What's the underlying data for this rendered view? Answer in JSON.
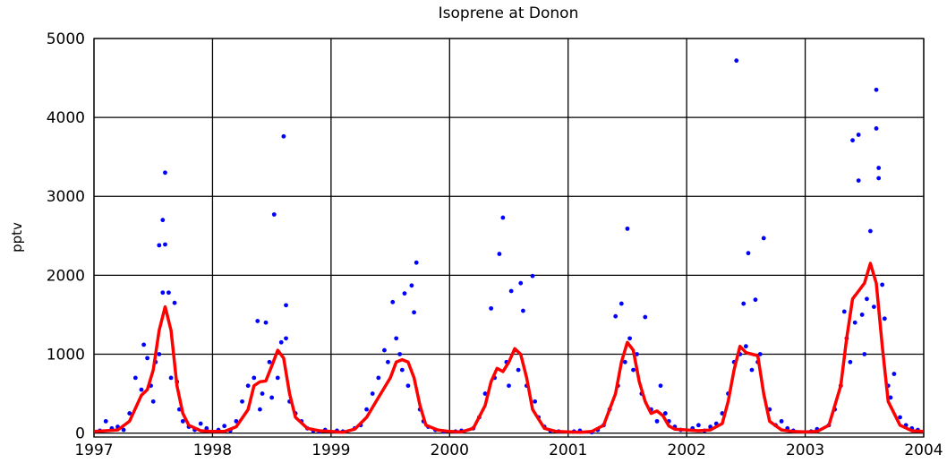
{
  "chart_data": {
    "type": "line",
    "title": "Isoprene at Donon",
    "y_label": "pptv",
    "xlim": [
      1997,
      2004
    ],
    "xticks": [
      1997,
      1998,
      1999,
      2000,
      2001,
      2002,
      2003,
      2004
    ],
    "ylim": [
      -50,
      5000
    ],
    "yticks": [
      0,
      1000,
      2000,
      3000,
      4000,
      5000
    ],
    "grid": true,
    "series": [
      {
        "color": "#0000ff",
        "marker": "dot",
        "x": [
          1997.05,
          1997.1,
          1997.15,
          1997.2,
          1997.25,
          1997.3,
          1997.35,
          1997.4,
          1997.42,
          1997.45,
          1997.48,
          1997.5,
          1997.52,
          1997.55,
          1997.55,
          1997.58,
          1997.58,
          1997.6,
          1997.6,
          1997.63,
          1997.65,
          1997.68,
          1997.7,
          1997.72,
          1997.75,
          1997.8,
          1997.85,
          1997.9,
          1997.95,
          1998.05,
          1998.1,
          1998.15,
          1998.2,
          1998.25,
          1998.3,
          1998.35,
          1998.38,
          1998.4,
          1998.42,
          1998.45,
          1998.48,
          1998.5,
          1998.52,
          1998.55,
          1998.58,
          1998.6,
          1998.62,
          1998.62,
          1998.65,
          1998.7,
          1998.75,
          1998.8,
          1998.85,
          1998.9,
          1998.95,
          1999.05,
          1999.1,
          1999.2,
          1999.25,
          1999.3,
          1999.35,
          1999.4,
          1999.45,
          1999.48,
          1999.52,
          1999.55,
          1999.58,
          1999.6,
          1999.62,
          1999.65,
          1999.68,
          1999.7,
          1999.72,
          1999.75,
          1999.78,
          1999.82,
          1999.88,
          1999.95,
          2000.05,
          2000.1,
          2000.2,
          2000.25,
          2000.3,
          2000.35,
          2000.38,
          2000.42,
          2000.45,
          2000.48,
          2000.5,
          2000.52,
          2000.55,
          2000.58,
          2000.6,
          2000.62,
          2000.65,
          2000.7,
          2000.72,
          2000.75,
          2000.8,
          2000.85,
          2000.92,
          2001.05,
          2001.1,
          2001.2,
          2001.25,
          2001.3,
          2001.35,
          2001.4,
          2001.42,
          2001.45,
          2001.48,
          2001.5,
          2001.52,
          2001.55,
          2001.58,
          2001.62,
          2001.65,
          2001.7,
          2001.75,
          2001.78,
          2001.82,
          2001.85,
          2001.9,
          2001.95,
          2002.05,
          2002.1,
          2002.15,
          2002.2,
          2002.25,
          2002.3,
          2002.35,
          2002.4,
          2002.42,
          2002.45,
          2002.48,
          2002.5,
          2002.52,
          2002.55,
          2002.58,
          2002.6,
          2002.62,
          2002.65,
          2002.7,
          2002.75,
          2002.8,
          2002.85,
          2002.9,
          2003.05,
          2003.1,
          2003.2,
          2003.25,
          2003.3,
          2003.33,
          2003.35,
          2003.38,
          2003.4,
          2003.42,
          2003.45,
          2003.45,
          2003.48,
          2003.5,
          2003.52,
          2003.55,
          2003.58,
          2003.6,
          2003.6,
          2003.62,
          2003.62,
          2003.65,
          2003.67,
          2003.7,
          2003.72,
          2003.75,
          2003.8,
          2003.85,
          2003.9,
          2003.95
        ],
        "values": [
          30,
          150,
          60,
          80,
          40,
          250,
          700,
          550,
          1120,
          950,
          600,
          400,
          900,
          2380,
          1000,
          2700,
          1780,
          3300,
          2390,
          1780,
          700,
          1650,
          650,
          300,
          150,
          80,
          40,
          120,
          60,
          40,
          90,
          30,
          150,
          400,
          600,
          700,
          1420,
          300,
          500,
          1400,
          900,
          450,
          2770,
          700,
          1150,
          3760,
          1620,
          1200,
          400,
          250,
          150,
          60,
          30,
          20,
          40,
          30,
          20,
          60,
          100,
          300,
          500,
          700,
          1050,
          900,
          1660,
          1200,
          1000,
          800,
          1770,
          600,
          1870,
          1530,
          2160,
          300,
          150,
          80,
          40,
          20,
          20,
          30,
          60,
          200,
          500,
          1580,
          700,
          2270,
          2730,
          900,
          600,
          1800,
          1050,
          800,
          1900,
          1550,
          600,
          1990,
          400,
          200,
          80,
          30,
          20,
          20,
          30,
          10,
          40,
          100,
          300,
          1480,
          600,
          1640,
          900,
          2590,
          1200,
          800,
          1000,
          500,
          1470,
          300,
          150,
          600,
          250,
          150,
          80,
          40,
          60,
          100,
          30,
          80,
          120,
          250,
          500,
          900,
          4720,
          1000,
          1640,
          1100,
          2280,
          800,
          1690,
          900,
          1000,
          2470,
          300,
          100,
          150,
          60,
          30,
          20,
          50,
          100,
          300,
          600,
          1540,
          1200,
          900,
          3710,
          1400,
          3780,
          3200,
          1500,
          1000,
          1700,
          2560,
          1600,
          4350,
          3860,
          3360,
          3230,
          1880,
          1450,
          600,
          450,
          750,
          200,
          100,
          60,
          40
        ]
      },
      {
        "color": "#ff0000",
        "x": [
          1997.0,
          1997.1,
          1997.2,
          1997.3,
          1997.4,
          1997.45,
          1997.5,
          1997.55,
          1997.6,
          1997.65,
          1997.7,
          1997.75,
          1997.8,
          1997.9,
          1998.0,
          1998.1,
          1998.2,
          1998.3,
          1998.35,
          1998.4,
          1998.45,
          1998.5,
          1998.55,
          1998.6,
          1998.65,
          1998.7,
          1998.8,
          1998.9,
          1999.0,
          1999.1,
          1999.2,
          1999.3,
          1999.4,
          1999.5,
          1999.55,
          1999.6,
          1999.65,
          1999.7,
          1999.75,
          1999.8,
          1999.9,
          2000.0,
          2000.1,
          2000.2,
          2000.3,
          2000.35,
          2000.4,
          2000.45,
          2000.5,
          2000.55,
          2000.6,
          2000.65,
          2000.7,
          2000.8,
          2000.9,
          2001.0,
          2001.1,
          2001.2,
          2001.3,
          2001.4,
          2001.45,
          2001.5,
          2001.55,
          2001.6,
          2001.65,
          2001.7,
          2001.75,
          2001.8,
          2001.85,
          2001.9,
          2002.0,
          2002.1,
          2002.2,
          2002.3,
          2002.35,
          2002.4,
          2002.45,
          2002.5,
          2002.55,
          2002.6,
          2002.65,
          2002.7,
          2002.8,
          2002.9,
          2003.0,
          2003.1,
          2003.2,
          2003.3,
          2003.35,
          2003.4,
          2003.45,
          2003.5,
          2003.55,
          2003.6,
          2003.65,
          2003.7,
          2003.8,
          2003.9,
          2004.0
        ],
        "values": [
          20,
          30,
          40,
          150,
          480,
          550,
          800,
          1300,
          1600,
          1300,
          600,
          250,
          100,
          30,
          20,
          20,
          80,
          300,
          600,
          650,
          660,
          850,
          1050,
          950,
          500,
          200,
          60,
          30,
          20,
          10,
          50,
          200,
          450,
          700,
          900,
          930,
          900,
          700,
          350,
          100,
          40,
          20,
          15,
          60,
          350,
          650,
          820,
          780,
          900,
          1070,
          1000,
          700,
          300,
          60,
          20,
          15,
          10,
          20,
          100,
          500,
          900,
          1150,
          1050,
          650,
          400,
          250,
          280,
          220,
          90,
          50,
          40,
          30,
          40,
          120,
          400,
          800,
          1100,
          1020,
          1000,
          980,
          500,
          150,
          40,
          20,
          15,
          20,
          100,
          600,
          1200,
          1700,
          1800,
          1900,
          2150,
          1900,
          1100,
          400,
          100,
          30,
          20
        ]
      }
    ]
  }
}
